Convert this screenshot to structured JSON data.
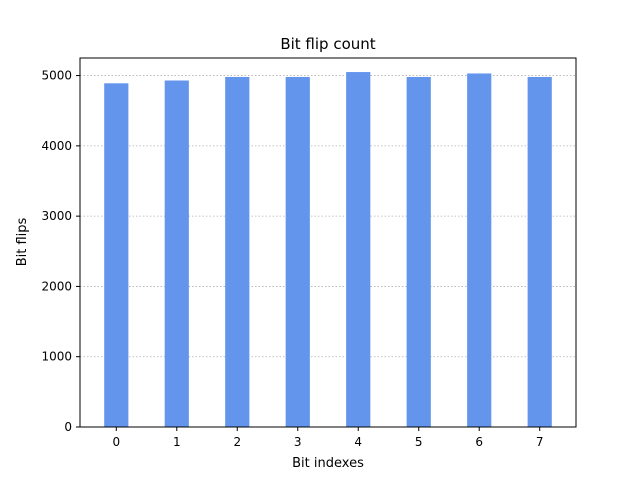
{
  "chart_data": {
    "type": "bar",
    "title": "Bit flip count",
    "xlabel": "Bit indexes",
    "ylabel": "Bit flips",
    "categories": [
      "0",
      "1",
      "2",
      "3",
      "4",
      "5",
      "6",
      "7"
    ],
    "values": [
      4890,
      4930,
      4980,
      4980,
      5050,
      4980,
      5030,
      4980
    ],
    "ylim": [
      0,
      5250
    ],
    "yticks": [
      0,
      1000,
      2000,
      3000,
      4000,
      5000
    ],
    "ytick_labels": [
      "0",
      "1000",
      "2000",
      "3000",
      "4000",
      "5000"
    ],
    "grid": "y-dotted",
    "bar_color": "#6495ED",
    "grid_color": "#b0b0b0"
  }
}
